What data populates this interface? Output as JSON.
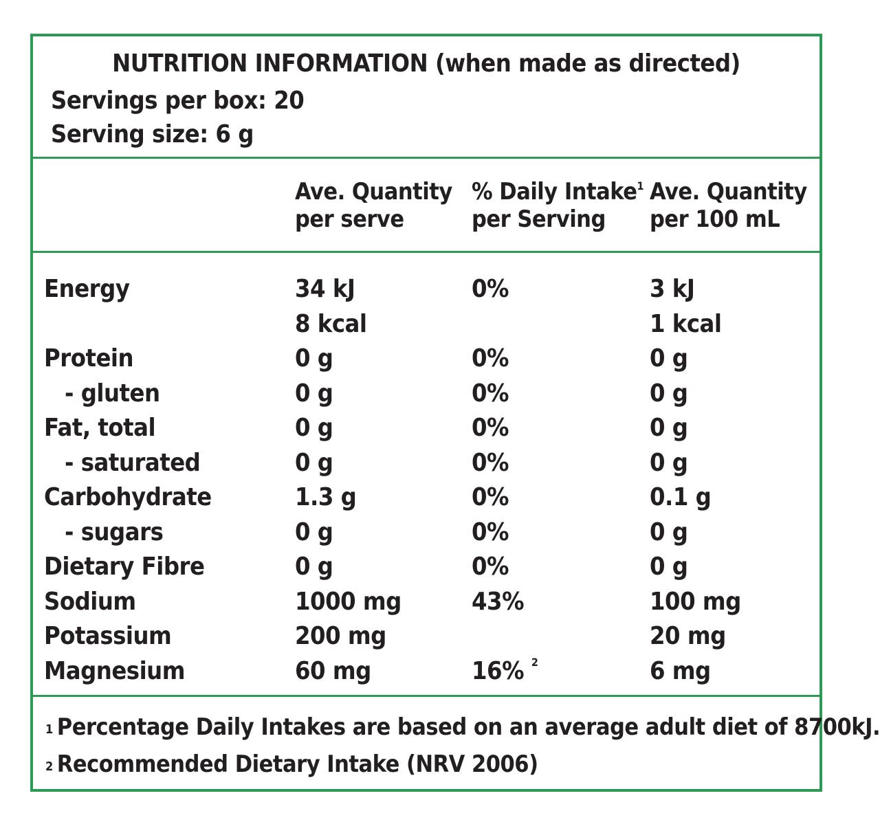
{
  "colors": {
    "border": "#2c9a52",
    "text": "#231f20"
  },
  "header": {
    "title": "NUTRITION INFORMATION (when made as directed)",
    "servings_per_box": "Servings per box: 20",
    "serving_size": "Serving size: 6 g"
  },
  "columns": {
    "serve_line1": "Ave. Quantity",
    "serve_line2": "per serve",
    "di_line1": "% Daily Intake",
    "di_mark": "1",
    "di_line2": "per Serving",
    "per100_line1": "Ave. Quantity",
    "per100_line2": "per 100 mL"
  },
  "rows": [
    {
      "name": "Energy",
      "serve": "34 kJ",
      "di": "0%",
      "per100": "3 kJ"
    },
    {
      "name": "",
      "serve": "8 kcal",
      "di": "",
      "per100": "1 kcal"
    },
    {
      "name": "Protein",
      "serve": "0 g",
      "di": "0%",
      "per100": "0 g"
    },
    {
      "name": "- gluten",
      "serve": "0 g",
      "di": "0%",
      "per100": "0 g"
    },
    {
      "name": "Fat, total",
      "serve": "0 g",
      "di": "0%",
      "per100": "0 g"
    },
    {
      "name": "- saturated",
      "serve": "0 g",
      "di": "0%",
      "per100": "0 g"
    },
    {
      "name": "Carbohydrate",
      "serve": "1.3 g",
      "di": "0%",
      "per100": "0.1 g"
    },
    {
      "name": "- sugars",
      "serve": "0 g",
      "di": "0%",
      "per100": "0 g"
    },
    {
      "name": "Dietary Fibre",
      "serve": "0 g",
      "di": "0%",
      "per100": "0 g"
    },
    {
      "name": "Sodium",
      "serve": "1000 mg",
      "di": "43%",
      "per100": "100 mg"
    },
    {
      "name": "Potassium",
      "serve": "200 mg",
      "di": "",
      "per100": "20 mg"
    },
    {
      "name": "Magnesium",
      "serve": "60 mg",
      "di": "16%",
      "di_mark": "2",
      "per100": "6 mg"
    }
  ],
  "footnotes": [
    {
      "mark": "1",
      "text": "Percentage Daily Intakes are based on an average adult diet of 8700kJ."
    },
    {
      "mark": "2",
      "text": "Recommended Dietary Intake (NRV 2006)"
    }
  ]
}
